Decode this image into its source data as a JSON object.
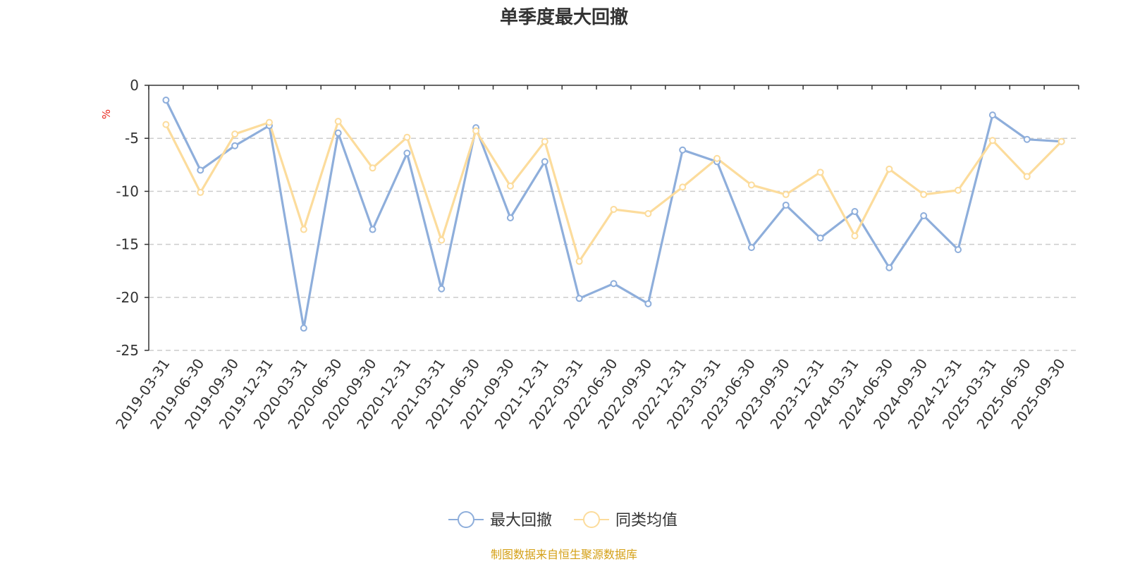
{
  "chart_data": {
    "type": "line",
    "title": "单季度最大回撤",
    "ylabel": "%",
    "xlabel": "",
    "ylim": [
      -25,
      0
    ],
    "yticks": [
      0,
      -5,
      -10,
      -15,
      -20,
      -25
    ],
    "grid": true,
    "legend_position": "bottom-center",
    "categories": [
      "2019-03-31",
      "2019-06-30",
      "2019-09-30",
      "2019-12-31",
      "2020-03-31",
      "2020-06-30",
      "2020-09-30",
      "2020-12-31",
      "2021-03-31",
      "2021-06-30",
      "2021-09-30",
      "2021-12-31",
      "2022-03-31",
      "2022-06-30",
      "2022-09-30",
      "2022-12-31",
      "2023-03-31",
      "2023-06-30",
      "2023-09-30",
      "2023-12-31",
      "2024-03-31",
      "2024-06-30",
      "2024-09-30",
      "2024-12-31",
      "2025-03-31",
      "2025-06-30",
      "2025-09-30"
    ],
    "series": [
      {
        "name": "最大回撤",
        "color": "#8eaedb",
        "values": [
          -1.4,
          -8.0,
          -5.7,
          -3.8,
          -22.9,
          -4.5,
          -13.6,
          -6.4,
          -19.2,
          -4.0,
          -12.5,
          -7.2,
          -20.1,
          -18.7,
          -20.6,
          -6.1,
          -7.2,
          -15.3,
          -11.3,
          -14.4,
          -11.9,
          -17.2,
          -12.3,
          -15.5,
          -2.8,
          -5.1,
          -5.3
        ]
      },
      {
        "name": "同类均值",
        "color": "#fcdc9c",
        "values": [
          -3.7,
          -10.1,
          -4.6,
          -3.5,
          -13.6,
          -3.4,
          -7.8,
          -4.9,
          -14.6,
          -4.3,
          -9.5,
          -5.3,
          -16.6,
          -11.7,
          -12.1,
          -9.6,
          -6.9,
          -9.4,
          -10.3,
          -8.2,
          -14.2,
          -7.9,
          -10.3,
          -9.9,
          -5.2,
          -8.6,
          -5.3
        ]
      }
    ]
  },
  "source_text": "制图数据来自恒生聚源数据库",
  "colors": {
    "axis": "#333333",
    "grid": "#cccccc",
    "unit": "#e8251c",
    "source": "#d4a017"
  }
}
